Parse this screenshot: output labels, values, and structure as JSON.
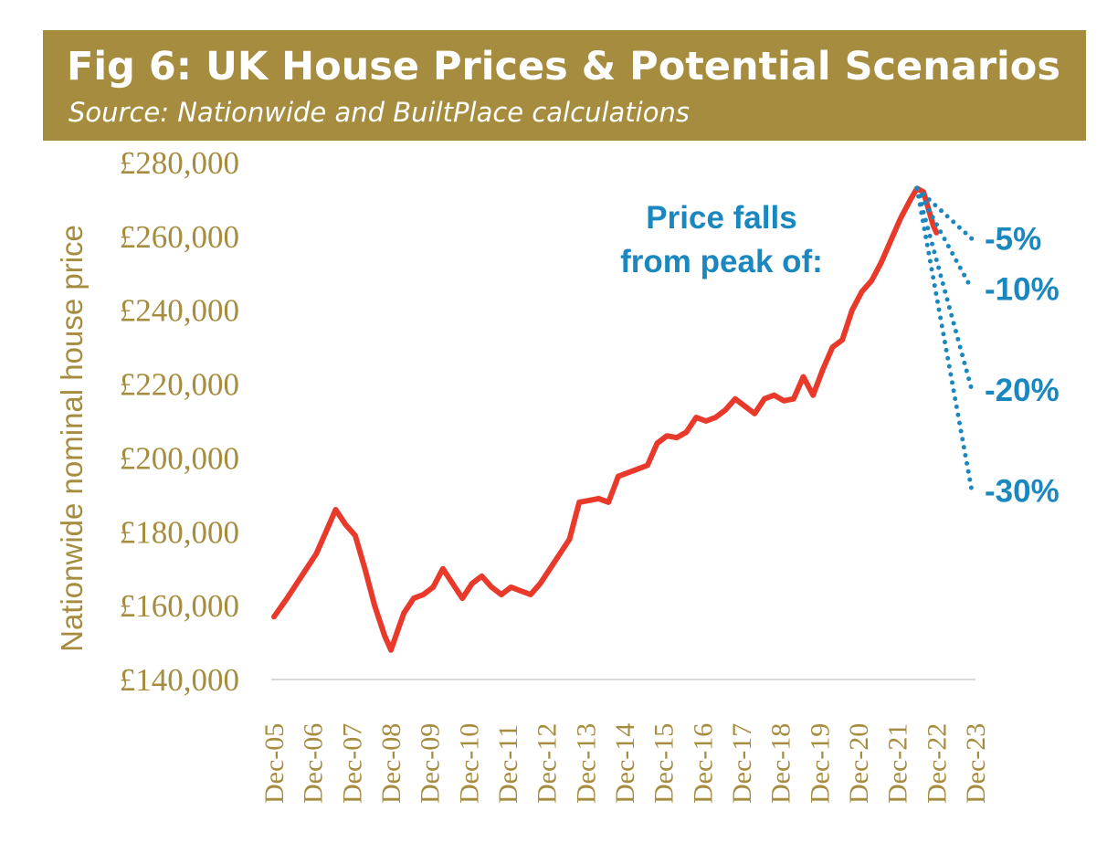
{
  "header": {
    "title": "Fig 6: UK House Prices & Potential Scenarios",
    "subtitle": "Source: Nationwide and BuiltPlace calculations"
  },
  "colors": {
    "banner": "#a68c3e",
    "axis_text": "#a68c3e",
    "series_line": "#e8392b",
    "scenario": "#1b87bf",
    "axis_line": "#d9d9d9"
  },
  "chart_data": {
    "type": "line",
    "title": "Fig 6: UK House Prices & Potential Scenarios",
    "subtitle": "Source: Nationwide and BuiltPlace calculations",
    "xlabel": "",
    "ylabel": "Nationwide nominal house price",
    "ylim": [
      140000,
      280000
    ],
    "yticks": [
      140000,
      160000,
      180000,
      200000,
      220000,
      240000,
      260000,
      280000
    ],
    "ytick_labels": [
      "£140,000",
      "£160,000",
      "£180,000",
      "£200,000",
      "£220,000",
      "£240,000",
      "£260,000",
      "£280,000"
    ],
    "xlim": [
      2005.917,
      2023.917
    ],
    "xticks": [
      2005.917,
      2006.917,
      2007.917,
      2008.917,
      2009.917,
      2010.917,
      2011.917,
      2012.917,
      2013.917,
      2014.917,
      2015.917,
      2016.917,
      2017.917,
      2018.917,
      2019.917,
      2020.917,
      2021.917,
      2022.917,
      2023.917
    ],
    "xtick_labels": [
      "Dec-05",
      "Dec-06",
      "Dec-07",
      "Dec-08",
      "Dec-09",
      "Dec-10",
      "Dec-11",
      "Dec-12",
      "Dec-13",
      "Dec-14",
      "Dec-15",
      "Dec-16",
      "Dec-17",
      "Dec-18",
      "Dec-19",
      "Dec-20",
      "Dec-21",
      "Dec-22",
      "Dec-23"
    ],
    "grid": false,
    "series": [
      {
        "name": "Nationwide nominal house price",
        "x": [
          2005.917,
          2006.25,
          2006.5,
          2006.75,
          2007.0,
          2007.25,
          2007.5,
          2007.75,
          2008.0,
          2008.25,
          2008.5,
          2008.75,
          2008.917,
          2009.083,
          2009.25,
          2009.5,
          2009.75,
          2010.0,
          2010.25,
          2010.5,
          2010.75,
          2011.0,
          2011.25,
          2011.5,
          2011.75,
          2012.0,
          2012.25,
          2012.5,
          2012.75,
          2013.0,
          2013.25,
          2013.5,
          2013.75,
          2014.0,
          2014.25,
          2014.5,
          2014.75,
          2015.0,
          2015.25,
          2015.5,
          2015.75,
          2016.0,
          2016.25,
          2016.5,
          2016.75,
          2017.0,
          2017.25,
          2017.5,
          2017.75,
          2018.0,
          2018.25,
          2018.5,
          2018.75,
          2019.0,
          2019.25,
          2019.5,
          2019.75,
          2020.0,
          2020.25,
          2020.5,
          2020.75,
          2021.0,
          2021.25,
          2021.5,
          2021.75,
          2022.0,
          2022.25,
          2022.417,
          2022.583,
          2022.75,
          2022.833,
          2022.917
        ],
        "values": [
          157000,
          162000,
          166000,
          170000,
          174000,
          180000,
          186000,
          182000,
          179000,
          170000,
          160000,
          152000,
          148000,
          153000,
          158000,
          162000,
          163000,
          165000,
          170000,
          166000,
          162000,
          166000,
          168000,
          165000,
          163000,
          165000,
          164000,
          163000,
          166000,
          170000,
          174000,
          178000,
          188000,
          188500,
          189000,
          188000,
          195000,
          196000,
          197000,
          198000,
          204000,
          206000,
          205500,
          207000,
          211000,
          210000,
          211000,
          213000,
          216000,
          214000,
          212000,
          216000,
          217000,
          215500,
          216000,
          222000,
          217000,
          224000,
          230000,
          232000,
          240000,
          245000,
          248000,
          253000,
          259000,
          265000,
          270000,
          273000,
          272000,
          266000,
          263000,
          261000
        ]
      }
    ],
    "annotation": "Price falls from peak of:",
    "annotation_lines": [
      "Price falls",
      "from peak of:"
    ],
    "scenarios": [
      {
        "label": "-5%",
        "pct": -5,
        "start": [
          2022.417,
          273000
        ],
        "end": [
          2023.917,
          259350
        ]
      },
      {
        "label": "-10%",
        "pct": -10,
        "start": [
          2022.417,
          273000
        ],
        "end": [
          2023.917,
          245700
        ]
      },
      {
        "label": "-20%",
        "pct": -20,
        "start": [
          2022.417,
          273000
        ],
        "end": [
          2023.917,
          218400
        ]
      },
      {
        "label": "-30%",
        "pct": -30,
        "start": [
          2022.417,
          273000
        ],
        "end": [
          2023.917,
          191100
        ]
      }
    ]
  }
}
